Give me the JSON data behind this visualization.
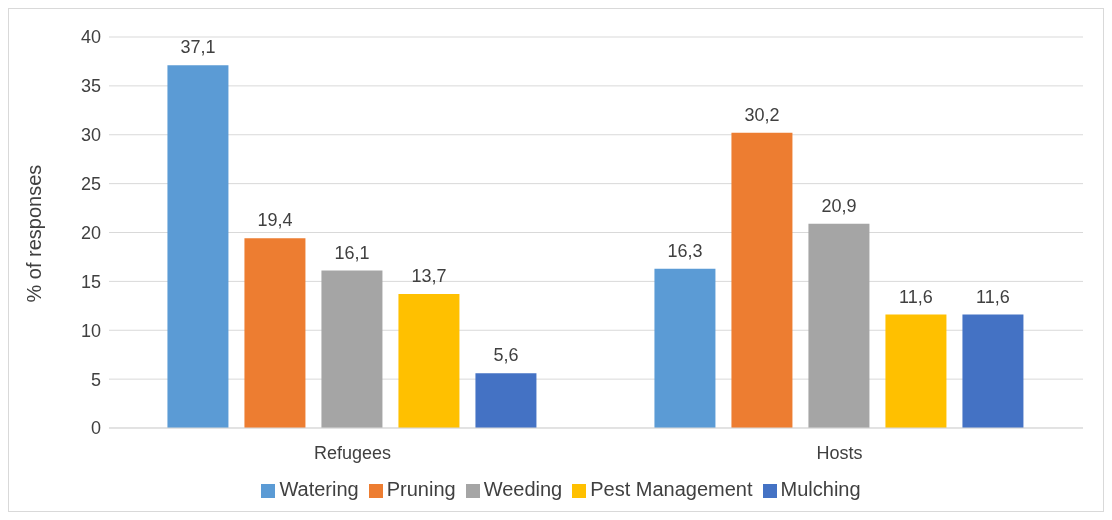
{
  "chart_data": {
    "type": "bar",
    "ylabel": "% of responses",
    "categories": [
      "Refugees",
      "Hosts"
    ],
    "series": [
      {
        "name": "Watering",
        "color": "#5b9bd5",
        "values": [
          37.1,
          16.3
        ],
        "value_labels": [
          "37,1",
          "16,3"
        ]
      },
      {
        "name": "Pruning",
        "color": "#ed7d31",
        "values": [
          19.4,
          30.2
        ],
        "value_labels": [
          "19,4",
          "30,2"
        ]
      },
      {
        "name": "Weeding",
        "color": "#a5a5a5",
        "values": [
          16.1,
          20.9
        ],
        "value_labels": [
          "16,1",
          "20,9"
        ]
      },
      {
        "name": "Pest Management",
        "color": "#ffc000",
        "values": [
          13.7,
          11.6
        ],
        "value_labels": [
          "13,7",
          "11,6"
        ]
      },
      {
        "name": "Mulching",
        "color": "#4472c4",
        "values": [
          5.6,
          11.6
        ],
        "value_labels": [
          "5,6",
          "11,6"
        ]
      }
    ],
    "ylim": [
      0,
      40
    ],
    "yticks": [
      0,
      5,
      10,
      15,
      20,
      25,
      30,
      35,
      40
    ],
    "grid": "y",
    "legend": "bottom"
  }
}
